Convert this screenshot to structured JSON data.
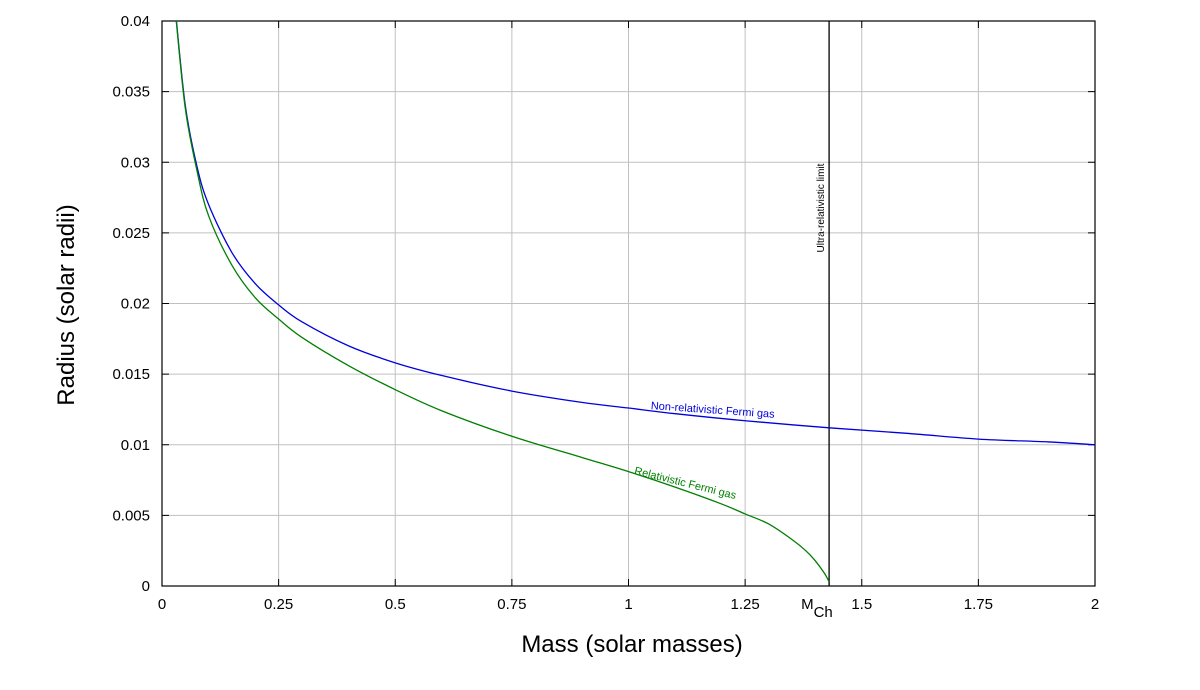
{
  "chart_data": {
    "type": "line",
    "title": "",
    "xlabel": "Mass (solar masses)",
    "ylabel": "Radius (solar radii)",
    "xlim": [
      0,
      2
    ],
    "ylim": [
      0,
      0.04
    ],
    "grid": true,
    "x_ticks": [
      0,
      0.25,
      0.5,
      0.75,
      1,
      1.25,
      1.5,
      1.75,
      2
    ],
    "x_tick_labels": [
      "0",
      "0.25",
      "0.5",
      "0.75",
      "1",
      "1.25",
      "1.5",
      "1.75",
      "2"
    ],
    "y_ticks": [
      0,
      0.005,
      0.01,
      0.015,
      0.02,
      0.025,
      0.03,
      0.035,
      0.04
    ],
    "y_tick_labels": [
      "0",
      "0.005",
      "0.01",
      "0.015",
      "0.02",
      "0.025",
      "0.03",
      "0.035",
      "0.04"
    ],
    "mch_marker": {
      "x": 1.43,
      "label_main": "M",
      "label_sub": "Ch"
    },
    "vertical_line": {
      "x": 1.43,
      "label": "Ultra-relativistic limit",
      "color": "#000000"
    },
    "series": [
      {
        "name": "Non-relativistic Fermi gas",
        "color": "#0000dd",
        "x": [
          0.03,
          0.05,
          0.075,
          0.1,
          0.15,
          0.2,
          0.25,
          0.3,
          0.4,
          0.5,
          0.6,
          0.75,
          0.9,
          1.0,
          1.1,
          1.25,
          1.43,
          1.6,
          1.75,
          1.9,
          2.0
        ],
        "y": [
          0.0403,
          0.034,
          0.0297,
          0.027,
          0.0236,
          0.0214,
          0.0199,
          0.0187,
          0.017,
          0.0158,
          0.0149,
          0.0138,
          0.013,
          0.0126,
          0.0122,
          0.0117,
          0.0112,
          0.0108,
          0.0104,
          0.0102,
          0.01
        ]
      },
      {
        "name": "Relativistic Fermi gas",
        "color": "#007f00",
        "x": [
          0.03,
          0.05,
          0.075,
          0.1,
          0.15,
          0.2,
          0.25,
          0.3,
          0.4,
          0.5,
          0.6,
          0.75,
          0.9,
          1.0,
          1.1,
          1.2,
          1.25,
          1.3,
          1.35,
          1.38,
          1.4,
          1.42,
          1.43
        ],
        "y": [
          0.0402,
          0.0338,
          0.0294,
          0.0262,
          0.0227,
          0.0204,
          0.0189,
          0.0176,
          0.0156,
          0.0139,
          0.0124,
          0.0106,
          0.0091,
          0.0081,
          0.007,
          0.0058,
          0.0051,
          0.0044,
          0.0033,
          0.0025,
          0.0018,
          0.0009,
          0.0003
        ]
      }
    ],
    "curve_labels": [
      {
        "text": "Non-relativistic Fermi gas",
        "series": 0,
        "x": 1.18,
        "angle": 4
      },
      {
        "text": "Relativistic Fermi gas",
        "series": 1,
        "x": 1.12,
        "angle": 14
      }
    ]
  }
}
